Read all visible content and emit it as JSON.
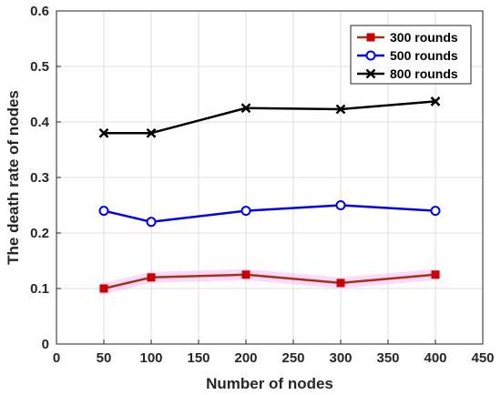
{
  "chart_data": {
    "type": "line",
    "xlabel": "Number of nodes",
    "ylabel": "The death rate of nodes",
    "xlim": [
      0,
      450
    ],
    "ylim": [
      0,
      0.6
    ],
    "xticks": [
      0,
      50,
      100,
      150,
      200,
      250,
      300,
      350,
      400,
      450
    ],
    "yticks": [
      0,
      0.1,
      0.2,
      0.3,
      0.4,
      0.5,
      0.6
    ],
    "xtick_labels": [
      "0",
      "50",
      "100",
      "150",
      "200",
      "250",
      "300",
      "350",
      "400",
      "450"
    ],
    "ytick_labels": [
      "0",
      "0.1",
      "0.2",
      "0.3",
      "0.4",
      "0.5",
      "0.6"
    ],
    "grid": true,
    "legend_position": "top-right",
    "x": [
      50,
      100,
      200,
      300,
      400
    ],
    "series": [
      {
        "name": "300 rounds",
        "values": [
          0.1,
          0.12,
          0.125,
          0.11,
          0.125
        ],
        "color": "#cc0000",
        "line_color": "#a0350f",
        "marker": "square"
      },
      {
        "name": "500 rounds",
        "values": [
          0.24,
          0.22,
          0.24,
          0.25,
          0.24
        ],
        "color": "#0000ee",
        "line_color": "#0000ee",
        "marker": "circle"
      },
      {
        "name": "800 rounds",
        "values": [
          0.38,
          0.38,
          0.425,
          0.423,
          0.437
        ],
        "color": "#000000",
        "line_color": "#000000",
        "marker": "x"
      }
    ]
  }
}
